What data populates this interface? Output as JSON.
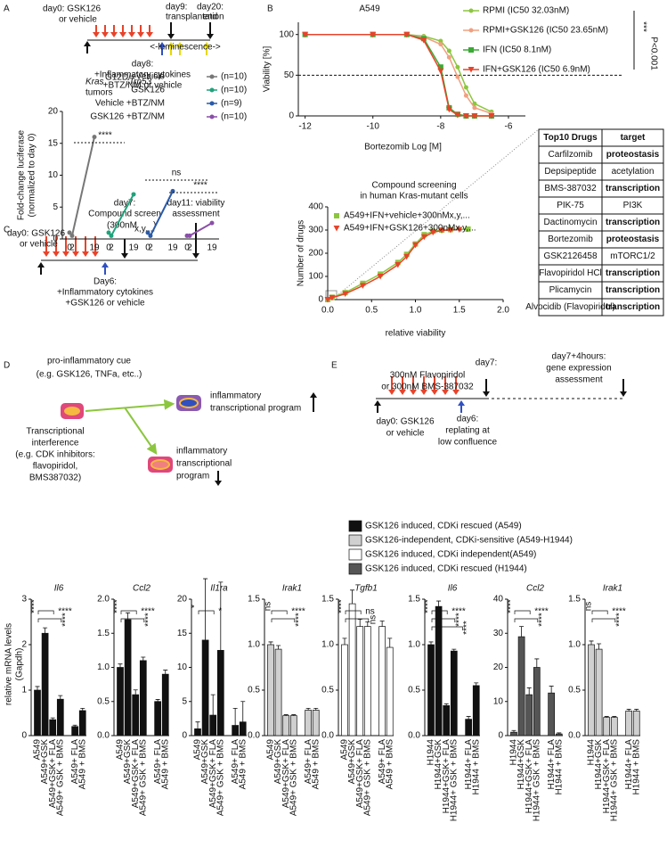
{
  "panel_labels": [
    "A",
    "B",
    "C",
    "D",
    "E"
  ],
  "timelines": {
    "A": [
      "day0: GSK126",
      "or vehicle",
      "day9:",
      "transplantation",
      "day20:",
      "end",
      "<-luminescence->",
      "day8:",
      "+Inflammatory cytokines",
      "+BTZ/NM or vehicle"
    ],
    "C": [
      "day7:",
      "Compound screen",
      "(300nM",
      "x,y,...",
      ")",
      "day11: viability",
      "assessment",
      "day0: GSK126",
      "or vehicle",
      "Day6:",
      "+Inflammatory cytokines",
      "+GSK126 or vehicle"
    ],
    "D": [
      "pro-inflammatory cue",
      "(e.g. GSK126, TNFa, etc..)",
      "inflammatory",
      "transcriptional program",
      "Transcriptional",
      "interference",
      "(e.g. CDK inhibitors:",
      "flavopiridol,",
      "BMS387032)",
      "inflammatory",
      "transcriptional",
      "program"
    ],
    "E": [
      "day7:",
      "300nM Flavopiridol",
      "or 300nM BMS-387032",
      "day7+4hours:",
      "gene expression",
      "assessment",
      "day0: GSK126",
      "or vehicle",
      "day6:",
      "replating at",
      "low confluence"
    ]
  },
  "table": {
    "header": [
      "Top10 Drugs",
      "target"
    ],
    "rows": [
      [
        "Carfilzomib",
        "proteostasis"
      ],
      [
        "Depsipeptide",
        "acetylation"
      ],
      [
        "BMS-387032",
        "transcription"
      ],
      [
        "PIK-75",
        "PI3K"
      ],
      [
        "Dactinomycin",
        "transcription"
      ],
      [
        "Bortezomib",
        "proteostasis"
      ],
      [
        "GSK2126458",
        "mTORC1/2"
      ],
      [
        "Flavopiridol HCl",
        "transcription"
      ],
      [
        "Plicamycin",
        "transcription"
      ],
      [
        "Alvocidib (Flavopiridol)",
        "transcription"
      ]
    ],
    "bold_rows": [
      0,
      2,
      4,
      5,
      7,
      8,
      9
    ]
  },
  "bar_legend": [
    {
      "label": "GSK126 induced, CDKi rescued (A549)",
      "color": "#111111"
    },
    {
      "label": "GSK126-independent, CDKi-sensitive (A549-H1944)",
      "color": "#d0d0d0"
    },
    {
      "label": "GSK126 induced, CDKi independent(A549)",
      "color": "#ffffff"
    },
    {
      "label": "GSK126 induced, CDKi rescued (H1944)",
      "color": "#555555"
    }
  ],
  "bar_y_label": [
    "relative mRNA levels",
    "(Gapdh)"
  ],
  "chart_data": [
    {
      "type": "line",
      "y_label": [
        "Fold-change luciferase",
        "(normalized to day 0)"
      ],
      "model_label": [
        "Kras",
        "G12D/+",
        ";Trp53",
        "-/-",
        "tumors"
      ],
      "x": [
        0,
        2,
        19
      ],
      "ylim": [
        0,
        20
      ],
      "yticks": [
        0,
        5,
        10,
        15,
        20
      ],
      "annotations": [
        "****",
        "ns",
        "****"
      ],
      "series": [
        {
          "name": "Vehicle",
          "n": "(n=10)",
          "color": "#777777",
          "values": [
            1,
            0.5,
            16
          ]
        },
        {
          "name": "GSK126",
          "n": "(n=10)",
          "color": "#1fa37a",
          "values": [
            1,
            0.5,
            7
          ]
        },
        {
          "name": "Vehicle +BTZ/NM",
          "n": "(n=9)",
          "color": "#2a5aa8",
          "values": [
            1,
            0.5,
            7.5
          ]
        },
        {
          "name": "GSK126 +BTZ/NM",
          "n": "(n=10)",
          "color": "#8a4fa8",
          "values": [
            0.5,
            0.5,
            2.5
          ]
        }
      ]
    },
    {
      "type": "line",
      "title": "A549",
      "x_label": "Bortezomib Log [M]",
      "y_label": "Viability [%]",
      "xlim": [
        -12.2,
        -5.5
      ],
      "xticks": [
        -12,
        -10,
        -8,
        -6
      ],
      "ylim": [
        0,
        115
      ],
      "yticks": [
        0,
        50,
        100
      ],
      "reference_line": 50,
      "annotations": [
        "***",
        "P<0.001"
      ],
      "series": [
        {
          "name": "RPMI (IC50 32.03nM)",
          "color": "#8cc63f",
          "marker": "circle",
          "x": [
            -12,
            -10,
            -9,
            -8.5,
            -8,
            -7.75,
            -7.5,
            -7.25,
            -7,
            -6.5
          ],
          "values": [
            100,
            100,
            100,
            98,
            92,
            80,
            60,
            35,
            15,
            5
          ]
        },
        {
          "name": "RPMI+GSK126 (IC50 23.65nM)",
          "color": "#f0a080",
          "marker": "circle",
          "x": [
            -12,
            -10,
            -9,
            -8.5,
            -8,
            -7.75,
            -7.5,
            -7.25,
            -7,
            -6.5
          ],
          "values": [
            100,
            100,
            100,
            97,
            88,
            72,
            48,
            25,
            10,
            3
          ]
        },
        {
          "name": "IFN (IC50 8.1nM)",
          "color": "#3aaa35",
          "marker": "square",
          "x": [
            -12,
            -10,
            -9,
            -8.5,
            -8,
            -7.75,
            -7.5,
            -7.25,
            -7,
            -6.5
          ],
          "values": [
            100,
            100,
            100,
            95,
            60,
            10,
            2,
            0,
            0,
            0
          ]
        },
        {
          "name": "IFN+GSK126 (IC50 6.9nM)",
          "color": "#e8432a",
          "marker": "triangle",
          "x": [
            -12,
            -10,
            -9,
            -8.5,
            -8,
            -7.75,
            -7.5,
            -7.25,
            -7,
            -6.5
          ],
          "values": [
            100,
            100,
            100,
            93,
            55,
            8,
            1,
            0,
            0,
            0
          ]
        }
      ]
    },
    {
      "type": "line",
      "title": [
        "Compound screening",
        "in human Kras-mutant cells"
      ],
      "x_label": "relative viability",
      "y_label": "Number of drugs",
      "xlim": [
        0,
        2
      ],
      "xticks": [
        {
          "value": 0,
          "label": "0.0"
        },
        0.5,
        {
          "value": 1,
          "label": "1.0"
        },
        1.5,
        {
          "value": 2,
          "label": "2.0"
        }
      ],
      "ylim": [
        0,
        400
      ],
      "yticks": [
        0,
        100,
        200,
        300,
        400
      ],
      "series": [
        {
          "name": "A549+IFN+vehicle+300nMx,y,...",
          "color": "#8cc63f",
          "marker": "square",
          "x": [
            0,
            0.05,
            0.2,
            0.4,
            0.6,
            0.8,
            0.9,
            1,
            1.1,
            1.2,
            1.3,
            1.4,
            1.6
          ],
          "values": [
            0,
            10,
            30,
            70,
            110,
            160,
            195,
            240,
            280,
            295,
            300,
            302,
            304
          ]
        },
        {
          "name": "A549+IFN+GSK126+300nMx,y,...",
          "color": "#e8432a",
          "marker": "triangle",
          "x": [
            0,
            0.05,
            0.2,
            0.4,
            0.6,
            0.8,
            0.9,
            1,
            1.1,
            1.2,
            1.3,
            1.4,
            1.5
          ],
          "values": [
            0,
            8,
            25,
            60,
            100,
            150,
            185,
            235,
            270,
            290,
            298,
            300,
            302
          ]
        }
      ]
    },
    {
      "type": "bar",
      "title": "Il6",
      "color": "#111111",
      "categories": [
        "A549",
        "A549+GSK",
        "A549+GSK+ FLA",
        "A549+ GSK + BMS",
        "A549+ FLA",
        "A549 + BMS"
      ],
      "values": [
        1,
        2.25,
        0.35,
        0.8,
        0.2,
        0.55
      ],
      "errors": [
        0.08,
        0.12,
        0.04,
        0.08,
        0.03,
        0.05
      ],
      "ylim": [
        0,
        3
      ],
      "yticks": [
        0,
        1,
        2,
        3
      ],
      "significance": [
        "****",
        "****",
        "****"
      ]
    },
    {
      "type": "bar",
      "title": "Ccl2",
      "color": "#111111",
      "categories": [
        "A549",
        "A549+GSK",
        "A549+GSK+ FLA",
        "A549+ GSK + BMS",
        "A549+ FLA",
        "A549 + BMS"
      ],
      "values": [
        1,
        1.7,
        0.6,
        1.1,
        0.5,
        0.9
      ],
      "errors": [
        0.05,
        0.1,
        0.07,
        0.05,
        0.03,
        0.06
      ],
      "ylim": [
        0,
        2
      ],
      "yticks": [
        {
          "value": 0,
          "label": "0.0"
        },
        0.5,
        {
          "value": 1,
          "label": "1.0"
        },
        1.5,
        {
          "value": 2,
          "label": "2.0"
        }
      ],
      "significance": [
        "****",
        "****",
        "****"
      ]
    },
    {
      "type": "bar",
      "title": "Il1ra",
      "color": "#111111",
      "categories": [
        "A549",
        "A549+GSK",
        "A549+GSK+ FLA",
        "A549+ GSK + BMS",
        "A549+ FLA",
        "A549 + BMS"
      ],
      "values": [
        1,
        14,
        3,
        12.5,
        1.5,
        2
      ],
      "errors": [
        1,
        9,
        3,
        10,
        2.5,
        3
      ],
      "ylim": [
        0,
        20
      ],
      "yticks": [
        0,
        5,
        10,
        15,
        20
      ],
      "significance": [
        "*",
        "*"
      ]
    },
    {
      "type": "bar",
      "title": "Irak1",
      "color": "#d0d0d0",
      "categories": [
        "A549",
        "A549+GSK",
        "A549+GSK+ FLA",
        "A549+ GSK + BMS",
        "A549+ FLA",
        "A549 + BMS"
      ],
      "values": [
        1,
        0.95,
        0.22,
        0.22,
        0.28,
        0.28
      ],
      "errors": [
        0.03,
        0.04,
        0.01,
        0.01,
        0.02,
        0.02
      ],
      "ylim": [
        0,
        1.5
      ],
      "yticks": [
        {
          "value": 0,
          "label": "0.0"
        },
        0.5,
        {
          "value": 1,
          "label": "1.0"
        },
        1.5
      ],
      "significance": [
        "ns",
        "****",
        "****"
      ]
    },
    {
      "type": "bar",
      "title": "Tgfb1",
      "color": "#ffffff",
      "categories": [
        "A549",
        "A549+GSK",
        "A549+GSK+ FLA",
        "A549+ GSK + BMS",
        "A549+ FLA",
        "A549 + BMS"
      ],
      "values": [
        1,
        1.45,
        1.2,
        1.2,
        1.2,
        0.97
      ],
      "errors": [
        0.07,
        0.15,
        0.08,
        0.05,
        0.06,
        0.1
      ],
      "ylim": [
        0,
        1.5
      ],
      "yticks": [
        {
          "value": 0,
          "label": "0.0"
        },
        0.5,
        {
          "value": 1,
          "label": "1.0"
        },
        1.5
      ],
      "significance": [
        "****",
        "ns",
        "ns"
      ]
    },
    {
      "type": "bar",
      "title": "Il6",
      "color": "#111111",
      "categories": [
        "H1944",
        "H1944+GSK",
        "H1944+GSK+ FLA",
        "H1944+ GSK + BMS",
        "H1944+ FLA",
        "H1944 + BMS"
      ],
      "values": [
        1,
        1.42,
        0.33,
        0.93,
        0.18,
        0.55
      ],
      "errors": [
        0.03,
        0.06,
        0.02,
        0.02,
        0.03,
        0.03
      ],
      "ylim": [
        0,
        1.5
      ],
      "yticks": [
        {
          "value": 0,
          "label": "0.0"
        },
        0.5,
        {
          "value": 1,
          "label": "1.0"
        },
        1.5
      ],
      "significance": [
        "****",
        "****",
        "****",
        "****"
      ]
    },
    {
      "type": "bar",
      "title": "Ccl2",
      "color": "#555555",
      "categories": [
        "H1944",
        "H1944+GSK",
        "H1944+GSK+ FLA",
        "H1944+ GSK + BMS",
        "H1944+ FLA",
        "H1944 + BMS"
      ],
      "values": [
        1,
        29,
        12,
        20,
        12.5,
        0.5
      ],
      "errors": [
        0.5,
        3,
        2,
        2.5,
        2,
        0.3
      ],
      "ylim": [
        0,
        40
      ],
      "yticks": [
        0,
        10,
        20,
        30,
        40
      ],
      "significance": [
        "****",
        "****",
        "****"
      ]
    },
    {
      "type": "bar",
      "title": "Irak1",
      "color": "#d0d0d0",
      "categories": [
        "H1944",
        "H1944+GSK",
        "H1944+GSK+ FLA",
        "H1944+ GSK + BMS",
        "H1944+ FLA",
        "H1944 + BMS"
      ],
      "values": [
        1,
        0.95,
        0.2,
        0.2,
        0.27,
        0.27
      ],
      "errors": [
        0.04,
        0.06,
        0.01,
        0.01,
        0.02,
        0.02
      ],
      "ylim": [
        0,
        1.5
      ],
      "yticks": [
        {
          "value": 0,
          "label": "0.0"
        },
        0.5,
        {
          "value": 1,
          "label": "1.0"
        },
        1.5
      ],
      "significance": [
        "ns",
        "****",
        "****"
      ]
    }
  ]
}
